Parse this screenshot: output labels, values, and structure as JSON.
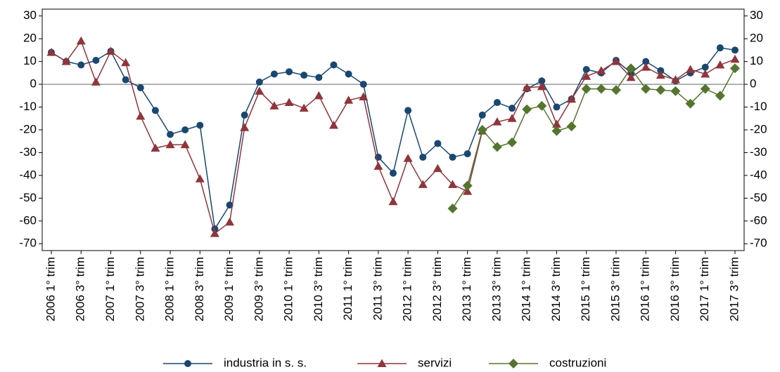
{
  "chart_data": {
    "type": "line",
    "categories": [
      "2006 1° trim",
      null,
      "2006 3° trim",
      null,
      "2007 1° trim",
      null,
      "2007 3° trim",
      null,
      "2008 1° trim",
      null,
      "2008 3° trim",
      null,
      "2009 1° trim",
      null,
      "2009 3° trim",
      null,
      "2010 1° trim",
      null,
      "2010 3° trim",
      null,
      "2011 1° trim",
      null,
      "2011 3° trim",
      null,
      "2012 1° trim",
      null,
      "2012 3° trim",
      null,
      "2013 1° trim",
      null,
      "2013 3° trim",
      null,
      "2014 1° trim",
      null,
      "2014 3° trim",
      null,
      "2015 1° trim",
      null,
      "2015 3° trim",
      null,
      "2016 1° trim",
      null,
      "2016 3° trim",
      null,
      "2017 1° trim",
      null,
      "2017 3° trim"
    ],
    "series": [
      {
        "name": "industria in s. s.",
        "color": "#1a476f",
        "marker": "circle",
        "values": [
          14,
          10,
          8.5,
          10.5,
          14.5,
          2,
          -1.5,
          -11.5,
          -22,
          -20,
          -18,
          -63.5,
          -53,
          -13.5,
          1,
          4.5,
          5.5,
          4,
          3,
          8.5,
          4.5,
          0,
          -32,
          -39,
          -11.5,
          -32,
          -26,
          -32,
          -30.5,
          -13.5,
          -8,
          -10.5,
          -2,
          1.5,
          -10,
          -6.5,
          6.5,
          5,
          10.5,
          5,
          10,
          6,
          1.5,
          5,
          7.5,
          16,
          15
        ]
      },
      {
        "name": "servizi",
        "color": "#90353b",
        "marker": "triangle",
        "values": [
          14,
          10,
          19,
          1,
          14.5,
          9.5,
          -14,
          -28,
          -26.5,
          -26.5,
          -41.5,
          -65.5,
          -60.5,
          -19,
          -3,
          -9.5,
          -8,
          -10.5,
          -5,
          -18,
          -7,
          -5.5,
          -36,
          -51.5,
          -32.5,
          -44,
          -37,
          -44,
          -47,
          -20.5,
          -16.5,
          -15,
          -1.5,
          -1,
          -17.5,
          -6.5,
          3.5,
          6,
          10,
          3,
          7.5,
          4,
          2,
          6.5,
          4.5,
          8.5,
          11
        ]
      },
      {
        "name": "costruzioni",
        "color": "#55752f",
        "marker": "diamond",
        "values": [
          null,
          null,
          null,
          null,
          null,
          null,
          null,
          null,
          null,
          null,
          null,
          null,
          null,
          null,
          null,
          null,
          null,
          null,
          null,
          null,
          null,
          null,
          null,
          null,
          null,
          null,
          null,
          -54.5,
          -44.5,
          -20,
          -27.5,
          -25.5,
          -11,
          -9.5,
          -20.5,
          -18.5,
          -2,
          -2,
          -2.5,
          7,
          -2,
          -2.5,
          -3,
          -8.5,
          -2,
          -5,
          7
        ]
      }
    ],
    "ylim": [
      -73,
      33
    ],
    "yticks": [
      -70,
      -60,
      -50,
      -40,
      -30,
      -20,
      -10,
      0,
      10,
      20,
      30
    ],
    "y2lim": [
      -73,
      33
    ],
    "y2ticks": [
      -70,
      -60,
      -50,
      -40,
      -30,
      -20,
      -10,
      0,
      10,
      20,
      30
    ],
    "zero_line": true,
    "legend": "bottom"
  }
}
